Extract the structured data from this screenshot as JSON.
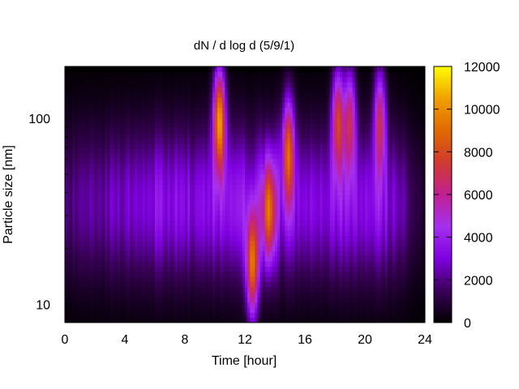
{
  "chart_data": {
    "type": "heatmap",
    "title": "dN / d log d (5/9/1)",
    "xlabel": "Time [hour]",
    "ylabel": "Particle size [nm]",
    "x_range": [
      0,
      24
    ],
    "x_ticks": [
      0,
      4,
      8,
      12,
      16,
      20,
      24
    ],
    "x_tick_labels": [
      "0",
      "4",
      "8",
      "12",
      "16",
      "20",
      "24"
    ],
    "y_scale": "log",
    "y_range": [
      8,
      190
    ],
    "y_ticks": [
      10,
      100
    ],
    "y_tick_labels": [
      "10",
      "100"
    ],
    "colorbar": {
      "range": [
        0,
        12000
      ],
      "ticks": [
        0,
        2000,
        4000,
        6000,
        8000,
        10000,
        12000
      ],
      "tick_labels": [
        "0",
        "2000",
        "4000",
        "6000",
        "8000",
        "10000",
        "12000"
      ],
      "palette": [
        "#000000",
        "#3a0059",
        "#7f00e0",
        "#a530f0",
        "#c02090",
        "#d03a30",
        "#e06a00",
        "#f0a000",
        "#ffff00"
      ]
    },
    "features": [
      {
        "time_h": 10.3,
        "size_nm": 100,
        "peak_value": 9500
      },
      {
        "time_h": 12.5,
        "size_nm": 16,
        "peak_value": 8000
      },
      {
        "time_h": 13.6,
        "size_nm": 32,
        "peak_value": 6500
      },
      {
        "time_h": 14.9,
        "size_nm": 70,
        "peak_value": 6800
      },
      {
        "time_h": 18.2,
        "size_nm": 100,
        "peak_value": 6800
      },
      {
        "time_h": 19.0,
        "size_nm": 100,
        "peak_value": 5800
      },
      {
        "time_h": 21.0,
        "size_nm": 100,
        "peak_value": 5800
      }
    ]
  }
}
